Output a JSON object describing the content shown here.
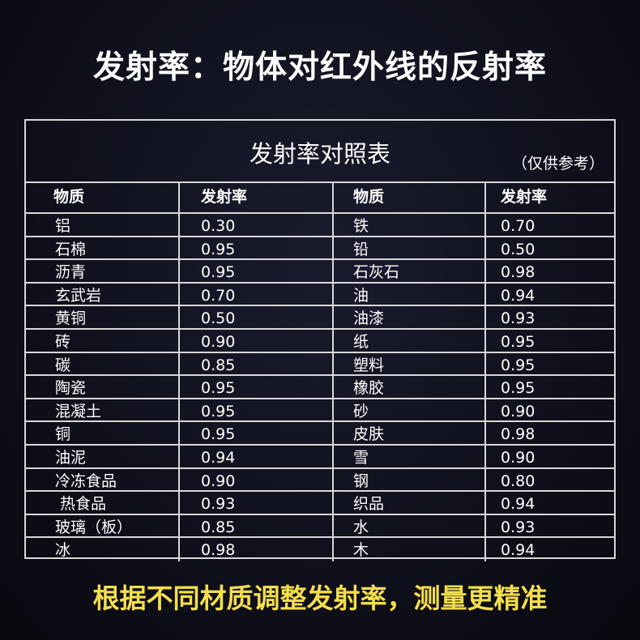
{
  "headline": "发射率：物体对红外线的反射率",
  "table": {
    "title": "发射率对照表",
    "note": "（仅供参考）",
    "headers": [
      "物质",
      "发射率",
      "物质",
      "发射率"
    ],
    "rows": [
      [
        "铝",
        "0.30",
        "铁",
        "0.70"
      ],
      [
        "石棉",
        "0.95",
        "铅",
        "0.50"
      ],
      [
        "沥青",
        "0.95",
        "石灰石",
        "0.98"
      ],
      [
        "玄武岩",
        "0.70",
        "油",
        "0.94"
      ],
      [
        "黄铜",
        "0.50",
        "油漆",
        "0.93"
      ],
      [
        "砖",
        "0.90",
        "纸",
        "0.95"
      ],
      [
        "碳",
        "0.85",
        "塑料",
        "0.95"
      ],
      [
        "陶瓷",
        "0.95",
        "橡胶",
        "0.95"
      ],
      [
        "混凝土",
        "0.95",
        "砂",
        "0.90"
      ],
      [
        "铜",
        "0.95",
        "皮肤",
        "0.98"
      ],
      [
        "油泥",
        "0.94",
        "雪",
        "0.90"
      ],
      [
        "冷冻食品",
        "0.90",
        "钢",
        "0.80"
      ],
      [
        " 热食品",
        "0.93",
        "织品",
        "0.94"
      ],
      [
        "玻璃（板）",
        "0.85",
        "水",
        "0.93"
      ],
      [
        "冰",
        "0.98",
        "木",
        "0.94"
      ]
    ]
  },
  "footer": "根据不同材质调整发射率，测量更精准",
  "colors": {
    "footer_text": "#f4de4c",
    "background": "#10111c"
  }
}
